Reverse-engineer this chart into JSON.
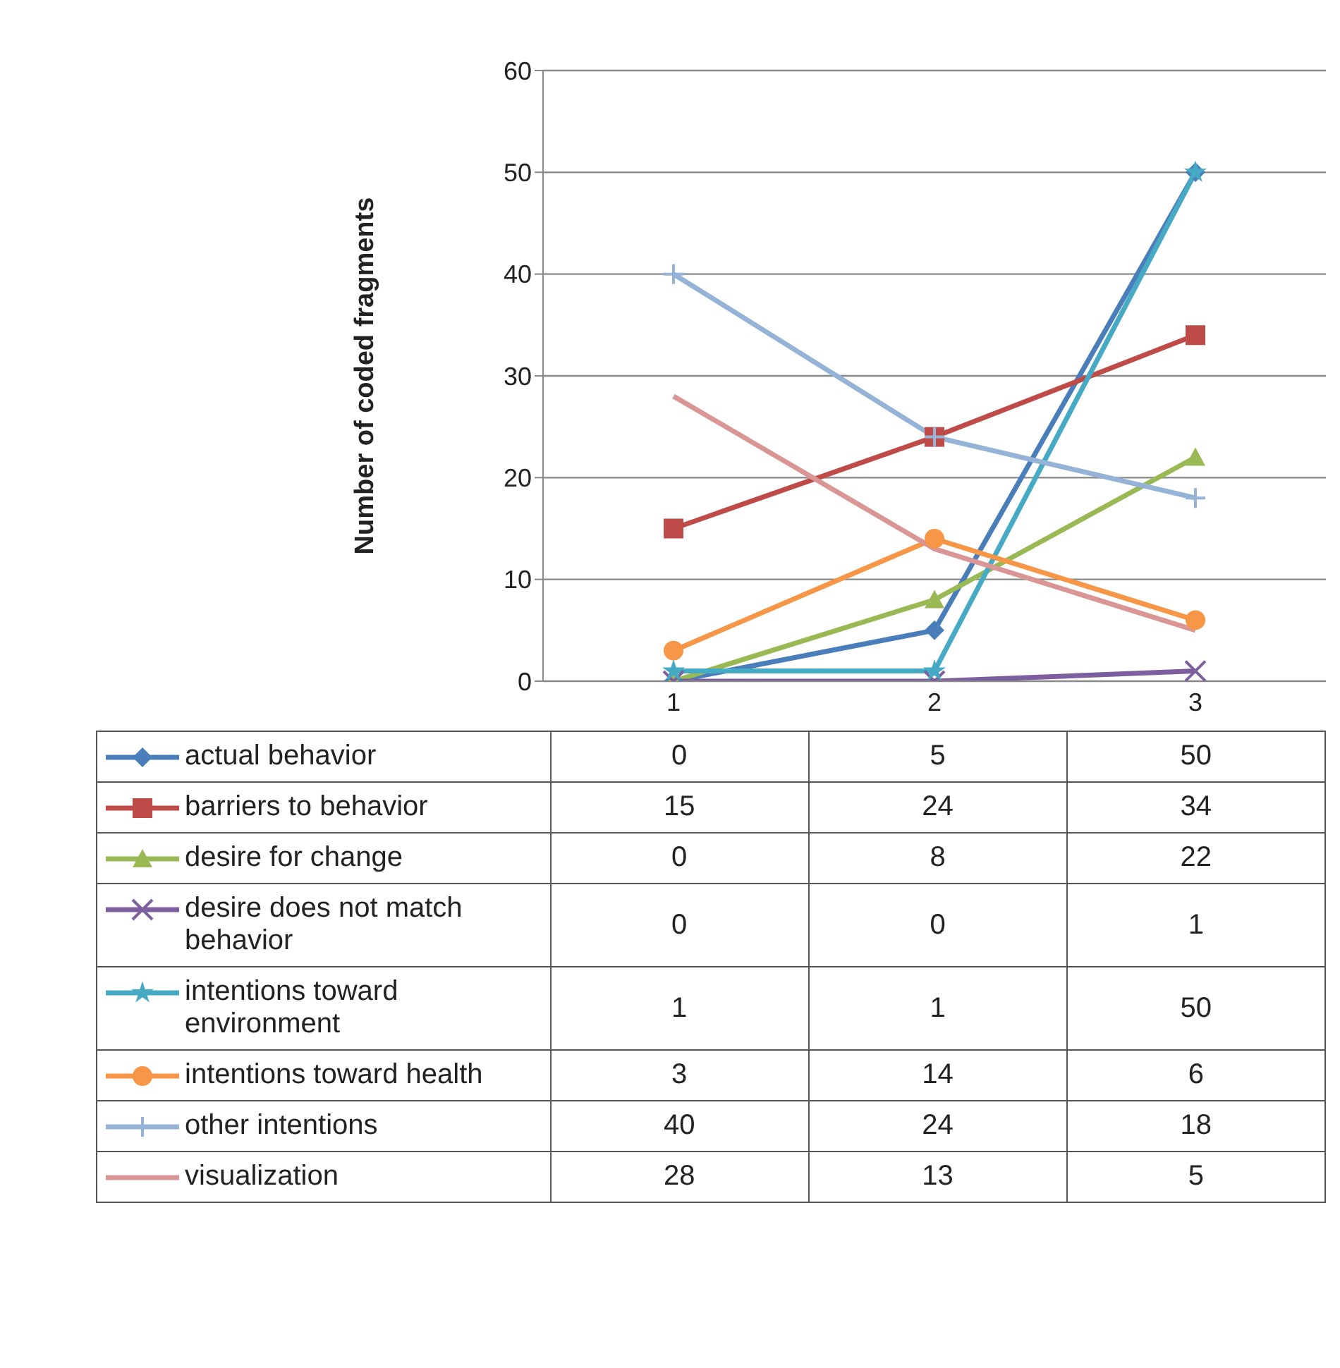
{
  "chart_data": {
    "type": "line",
    "ylabel": "Number of coded fragments",
    "categories": [
      "1",
      "2",
      "3"
    ],
    "ylim": [
      0,
      60
    ],
    "yticks": [
      0,
      10,
      20,
      30,
      40,
      50,
      60
    ],
    "grid": "y",
    "legend": "bottom",
    "data_labels": true,
    "line_style": "solid",
    "series": [
      {
        "name": "actual behavior",
        "color": "#4a7ebb",
        "marker": "diamond",
        "values": [
          0,
          5,
          50
        ]
      },
      {
        "name": "barriers to behavior",
        "color": "#be4b48",
        "marker": "square",
        "values": [
          15,
          24,
          34
        ]
      },
      {
        "name": "desire for change",
        "color": "#98b954",
        "marker": "triangle",
        "values": [
          0,
          8,
          22
        ]
      },
      {
        "name": "desire does not match behavior",
        "color": "#7d5fa0",
        "marker": "cross",
        "values": [
          0,
          0,
          1
        ]
      },
      {
        "name": "intentions toward environment",
        "color": "#46aac5",
        "marker": "star",
        "values": [
          1,
          1,
          50
        ]
      },
      {
        "name": "intentions toward health",
        "color": "#f79646",
        "marker": "circle",
        "values": [
          3,
          14,
          6
        ]
      },
      {
        "name": "other intentions",
        "color": "#95b3d7",
        "marker": "plus",
        "values": [
          40,
          24,
          18
        ]
      },
      {
        "name": "visualization",
        "color": "#d99694",
        "marker": "none",
        "values": [
          28,
          13,
          5
        ]
      }
    ]
  }
}
